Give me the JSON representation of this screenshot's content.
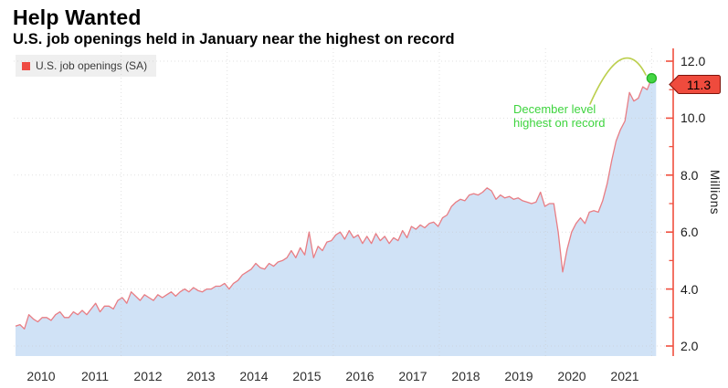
{
  "header": {
    "title": "Help Wanted",
    "subtitle": "U.S. job openings held in January near the highest on record"
  },
  "legend": {
    "label": "U.S. job openings (SA)",
    "swatch_color": "#ef4b43"
  },
  "annotation": {
    "line1": "December level",
    "line2": "highest on record",
    "color": "#3ed43e"
  },
  "value_label": {
    "text": "11.3",
    "fill": "#ef4b3d",
    "border": "#7d140c"
  },
  "y_axis": {
    "unit_label": "Millions",
    "ticks": [
      "12.0",
      "10.0",
      "8.0",
      "6.0",
      "4.0",
      "2.0"
    ],
    "tick_values": [
      12,
      10,
      8,
      6,
      4,
      2
    ],
    "minor_tick_values": [
      11,
      9,
      7,
      5,
      3
    ],
    "axis_color": "#f04f3e"
  },
  "x_axis": {
    "labels": [
      "2010",
      "2011",
      "2012",
      "2013",
      "2014",
      "2015",
      "2016",
      "2017",
      "2018",
      "2019",
      "2020",
      "2021"
    ],
    "gridline_years": [
      2012,
      2014,
      2016,
      2018,
      2020,
      2022
    ]
  },
  "colors": {
    "line": "#e87d84",
    "fill": "#cbdff5",
    "gridline": "#c9c9c9",
    "dot_fill": "#44d644",
    "dot_stroke": "#28b428",
    "arc": "#bccf4e"
  },
  "chart_data": {
    "type": "area",
    "title": "Help Wanted",
    "subtitle": "U.S. job openings held in January near the highest on record",
    "series_name": "U.S. job openings (SA)",
    "unit": "Millions",
    "frequency": "monthly",
    "x_start": "2010-01",
    "x_end": "2022-01",
    "start_year": 2010,
    "ylim": [
      1.7,
      12.4
    ],
    "y_ticks": [
      2,
      4,
      6,
      8,
      10,
      12
    ],
    "grid": true,
    "legend_position": "top-left",
    "values": [
      2.7,
      2.75,
      2.6,
      3.1,
      2.95,
      2.85,
      3.0,
      3.0,
      2.9,
      3.1,
      3.2,
      3.0,
      3.0,
      3.2,
      3.1,
      3.25,
      3.1,
      3.3,
      3.5,
      3.2,
      3.4,
      3.4,
      3.3,
      3.6,
      3.7,
      3.5,
      3.9,
      3.75,
      3.6,
      3.8,
      3.7,
      3.6,
      3.8,
      3.7,
      3.8,
      3.9,
      3.75,
      3.9,
      4.0,
      3.9,
      4.05,
      3.95,
      3.9,
      4.0,
      4.0,
      4.1,
      4.1,
      4.2,
      4.0,
      4.2,
      4.3,
      4.5,
      4.6,
      4.7,
      4.9,
      4.75,
      4.7,
      4.9,
      4.8,
      4.95,
      5.0,
      5.1,
      5.35,
      5.1,
      5.45,
      5.2,
      6.0,
      5.1,
      5.5,
      5.35,
      5.65,
      5.7,
      5.9,
      6.0,
      5.75,
      6.05,
      5.8,
      5.9,
      5.6,
      5.85,
      5.6,
      5.95,
      5.7,
      5.85,
      5.6,
      5.8,
      5.7,
      6.05,
      5.8,
      6.2,
      6.1,
      6.25,
      6.15,
      6.3,
      6.35,
      6.2,
      6.5,
      6.6,
      6.9,
      7.05,
      7.15,
      7.1,
      7.3,
      7.35,
      7.3,
      7.4,
      7.55,
      7.45,
      7.15,
      7.3,
      7.2,
      7.25,
      7.15,
      7.2,
      7.1,
      7.05,
      7.0,
      7.05,
      7.4,
      6.9,
      7.0,
      7.0,
      6.0,
      4.6,
      5.4,
      6.0,
      6.3,
      6.5,
      6.3,
      6.7,
      6.75,
      6.7,
      7.1,
      7.7,
      8.5,
      9.2,
      9.6,
      9.9,
      10.9,
      10.6,
      10.7,
      11.1,
      11.0,
      11.4,
      11.3
    ],
    "highlight_point": {
      "x": "2021-12",
      "value": 11.4,
      "note": "December level highest on record"
    },
    "last_point": {
      "x": "2022-01",
      "value": 11.3,
      "label": "11.3"
    }
  }
}
